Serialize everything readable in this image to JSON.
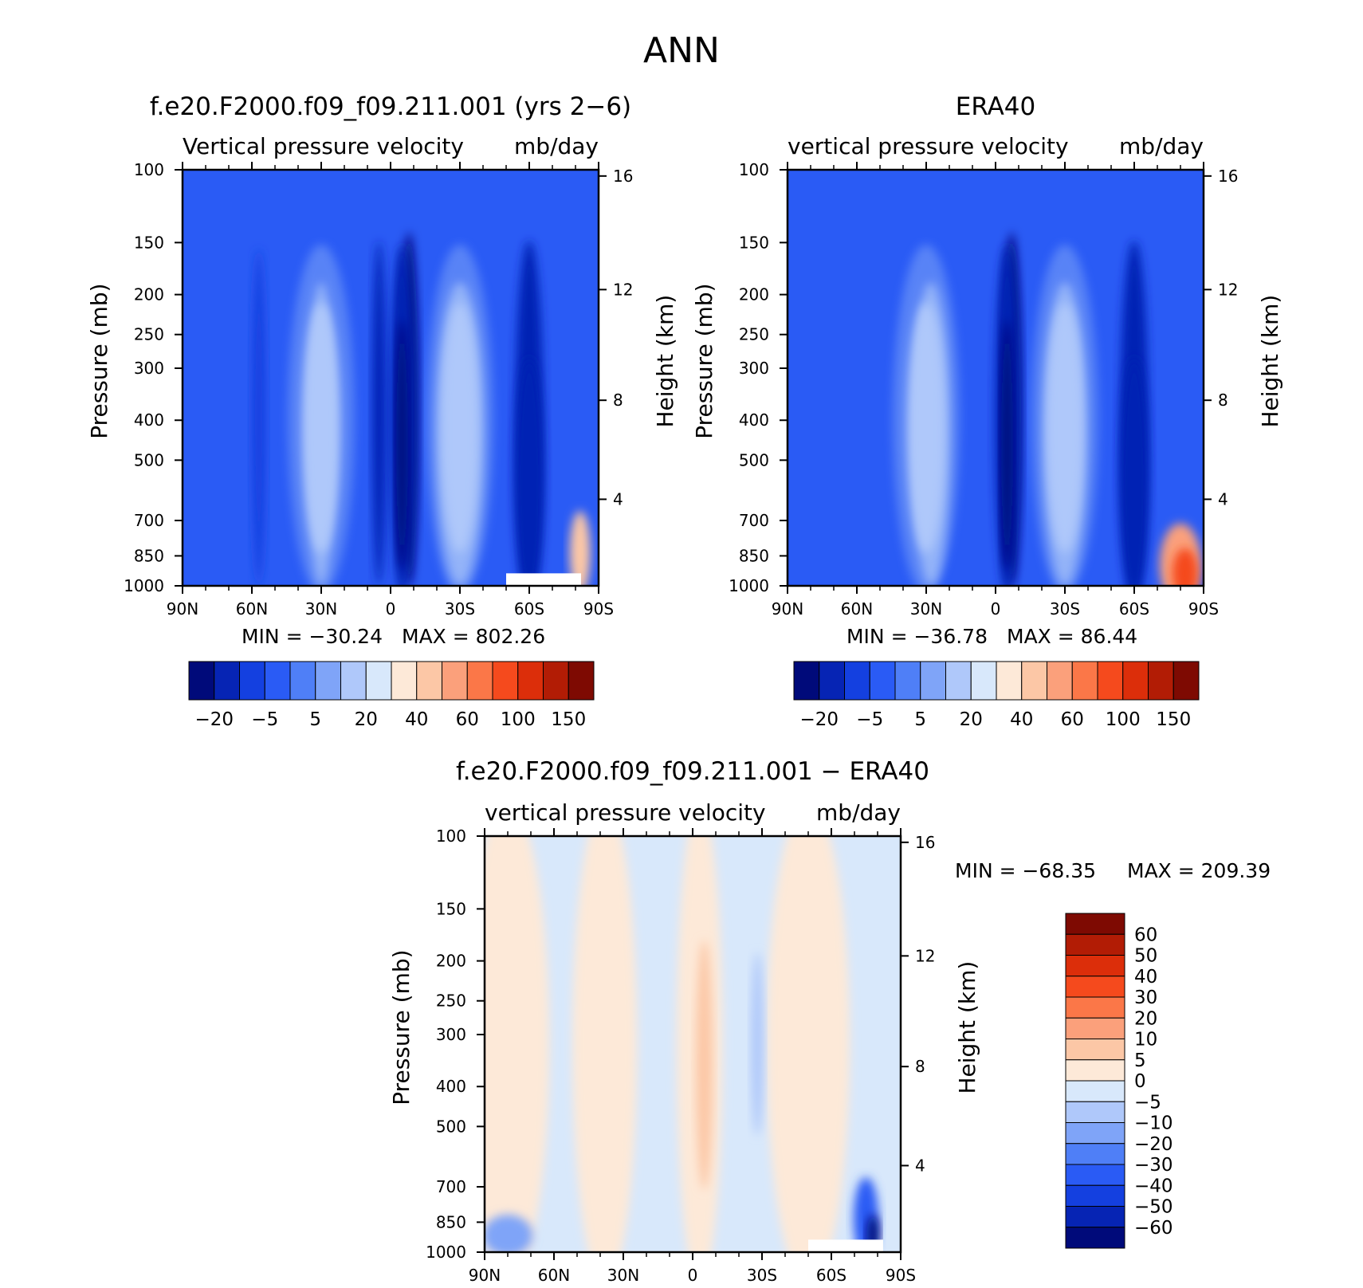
{
  "figure": {
    "title": "ANN"
  },
  "colors": {
    "ramp": [
      "#000a7a",
      "#0624b4",
      "#1440e0",
      "#2a5bf5",
      "#4f7ff7",
      "#7fa4f8",
      "#afc8fa",
      "#d8e8fb",
      "#fde9d8",
      "#fcc7a6",
      "#fba07b",
      "#fb7748",
      "#f54a1d",
      "#dc2e0a",
      "#b21c05",
      "#7e0a02"
    ],
    "diff_ramp": [
      "#000a7a",
      "#0624b4",
      "#1440e0",
      "#2a5bf5",
      "#4f7ff7",
      "#7fa4f8",
      "#afc8fa",
      "#d8e8fb",
      "#fde9d8",
      "#fcc7a6",
      "#fba07b",
      "#fb7748",
      "#f54a1d",
      "#dc2e0a",
      "#b21c05",
      "#7e0a02"
    ]
  },
  "chart_data": [
    {
      "type": "heatmap",
      "panel": "model",
      "title": "f.e20.F2000.f09_f09.211.001 (yrs 2−6)",
      "subtitle_left": "Vertical pressure velocity",
      "subtitle_right": "mb/day",
      "ylabel": "Pressure (mb)",
      "ylabel_right": "Height (km)",
      "x_ticks": [
        "90N",
        "60N",
        "30N",
        "0",
        "30S",
        "60S",
        "90S"
      ],
      "y_ticks": [
        "100",
        "150",
        "200",
        "250",
        "300",
        "400",
        "500",
        "700",
        "850",
        "1000"
      ],
      "y_right_ticks": [
        "16",
        "12",
        "8",
        "4"
      ],
      "min_label": "MIN = −30.24",
      "max_label": "MAX = 802.26",
      "min": -30.24,
      "max": 802.26,
      "colorbar_labels": [
        "−20",
        "−5",
        "5",
        "20",
        "40",
        "60",
        "100",
        "150"
      ],
      "features": [
        {
          "lat": -8,
          "level": 0,
          "width": 4,
          "shade": 0
        },
        {
          "lat": 5,
          "level": 1,
          "width": 3,
          "shade": 1
        },
        {
          "lat": -30,
          "level": 6,
          "width": 10,
          "shade": 6
        },
        {
          "lat": 30,
          "level": 6,
          "width": 6,
          "shade": 6
        },
        {
          "lat": -60,
          "level": 1,
          "width": 6,
          "shade": 1
        },
        {
          "lat": 57,
          "level": 2,
          "width": 3,
          "shade": 2
        }
      ]
    },
    {
      "type": "heatmap",
      "panel": "obs",
      "title": "ERA40",
      "subtitle_left": "vertical pressure velocity",
      "subtitle_right": "mb/day",
      "ylabel": "Pressure (mb)",
      "ylabel_right": "Height (km)",
      "x_ticks": [
        "90N",
        "60N",
        "30N",
        "0",
        "30S",
        "60S",
        "90S"
      ],
      "y_ticks": [
        "100",
        "150",
        "200",
        "250",
        "300",
        "400",
        "500",
        "700",
        "850",
        "1000"
      ],
      "y_right_ticks": [
        "16",
        "12",
        "8",
        "4"
      ],
      "min_label": "MIN = −36.78",
      "max_label": "MAX =   86.44",
      "min": -36.78,
      "max": 86.44,
      "colorbar_labels": [
        "−20",
        "−5",
        "5",
        "20",
        "40",
        "60",
        "100",
        "150"
      ],
      "features": [
        {
          "lat": -7,
          "level": 0,
          "width": 4,
          "shade": 0
        },
        {
          "lat": -30,
          "level": 6,
          "width": 9,
          "shade": 6
        },
        {
          "lat": 28,
          "level": 6,
          "width": 8,
          "shade": 6
        },
        {
          "lat": -60,
          "level": 1,
          "width": 6,
          "shade": 1
        }
      ]
    },
    {
      "type": "heatmap",
      "panel": "difference",
      "title": "f.e20.F2000.f09_f09.211.001 − ERA40",
      "subtitle_left": "vertical pressure velocity",
      "subtitle_right": "mb/day",
      "ylabel": "Pressure (mb)",
      "ylabel_right": "Height (km)",
      "x_ticks": [
        "90N",
        "60N",
        "30N",
        "0",
        "30S",
        "60S",
        "90S"
      ],
      "y_ticks": [
        "100",
        "150",
        "200",
        "250",
        "300",
        "400",
        "500",
        "700",
        "850",
        "1000"
      ],
      "y_right_ticks": [
        "16",
        "12",
        "8",
        "4"
      ],
      "min_label": "MIN = −68.35",
      "max_label": "MAX = 209.39",
      "min": -68.35,
      "max": 209.39,
      "colorbar_labels": [
        "60",
        "50",
        "40",
        "30",
        "20",
        "10",
        "5",
        "0",
        "−5",
        "−10",
        "−20",
        "−30",
        "−40",
        "−50",
        "−60"
      ]
    }
  ]
}
